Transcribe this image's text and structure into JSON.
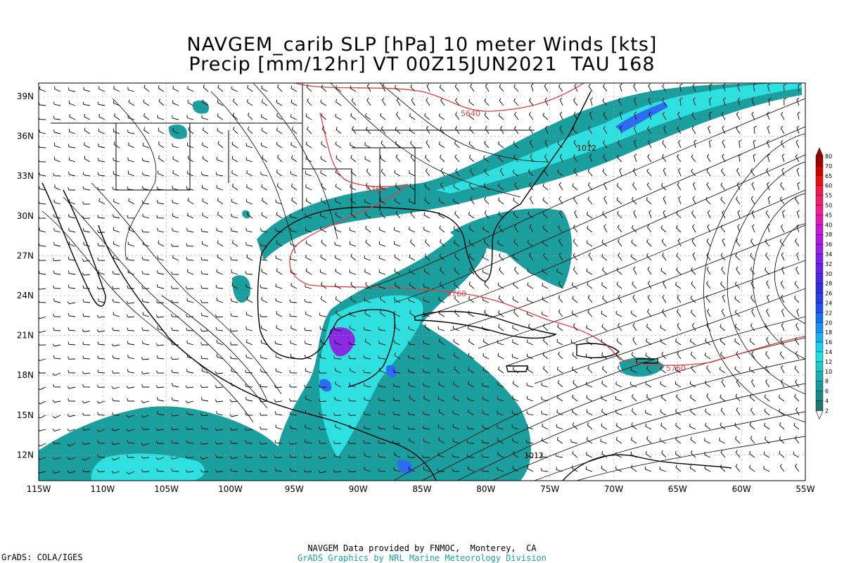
{
  "title": {
    "line1": "NAVGEM_carib SLP [hPa] 10 meter Winds [kts]",
    "line2": "Precip [mm/12hr] VT 00Z15JUN2021  TAU 168"
  },
  "footer": {
    "grads": "GrADS: COLA/IGES",
    "credit_line1": "NAVGEM Data provided by FNMOC,  Monterey,  CA",
    "credit_line2": "GrADS Graphics by NRL Marine Meteorology Division"
  },
  "map": {
    "lon_labels": [
      "115W",
      "110W",
      "105W",
      "100W",
      "95W",
      "90W",
      "85W",
      "80W",
      "75W",
      "70W",
      "65W",
      "60W",
      "55W"
    ],
    "lat_labels": [
      "39N",
      "36N",
      "33N",
      "30N",
      "27N",
      "24N",
      "21N",
      "18N",
      "15N",
      "12N"
    ],
    "contour_labels": {
      "height_5640": "5640",
      "height_5760_a": "5760",
      "height_5760_b": "5760",
      "height_5760_c": "5760",
      "pressure_1012_a": "1012",
      "pressure_1012_b": "1012"
    },
    "colors": {
      "precip_teal": "#1a9e9e",
      "precip_cyan": "#2fe0e0",
      "precip_blue": "#2d6cf0",
      "precip_purple": "#8a2be2",
      "height_contour": "#e04040",
      "land_border": "#000000"
    }
  },
  "colorbar": {
    "labels": [
      "80",
      "70",
      "65",
      "60",
      "55",
      "50",
      "45",
      "40",
      "38",
      "36",
      "34",
      "32",
      "30",
      "28",
      "26",
      "24",
      "22",
      "20",
      "18",
      "16",
      "14",
      "12",
      "10",
      "8",
      "6",
      "4",
      "2"
    ],
    "colors": [
      "#a00000",
      "#d00000",
      "#e81010",
      "#f01a4a",
      "#f0206c",
      "#f0208c",
      "#e01ab0",
      "#c81ad0",
      "#b01ae0",
      "#9a20e8",
      "#8020e8",
      "#6a20e8",
      "#4a28e8",
      "#3030e0",
      "#2840e8",
      "#2050f0",
      "#1870f0",
      "#1890f0",
      "#18b0f0",
      "#18d0f0",
      "#20e0e0",
      "#20c8c8",
      "#18b0b0",
      "#189898",
      "#188888",
      "#187878"
    ]
  }
}
